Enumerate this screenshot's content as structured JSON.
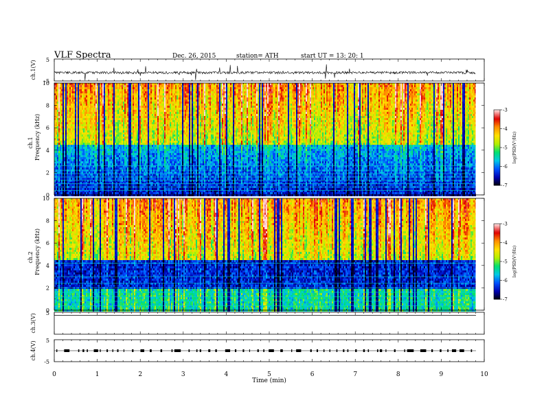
{
  "header": {
    "title": "VLF  Spectra",
    "date": "Dec. 26, 2015",
    "station": "station= ATH",
    "start": "start  UT  =    13: 20: 1"
  },
  "colors": {
    "background": "#ffffff",
    "axes": "#000000",
    "colormap": [
      "#000000",
      "#0000b0",
      "#0050ff",
      "#00c8e6",
      "#00e070",
      "#b4f000",
      "#ffe000",
      "#ff9000",
      "#e00000",
      "#ffd8d8"
    ]
  },
  "chart_data": [
    {
      "type": "line",
      "ylabel": "ch.1(V)",
      "ylim": [
        -5,
        5
      ],
      "yticks": [
        "5",
        "-5"
      ],
      "xlim": [
        0,
        10
      ],
      "series": [
        {
          "baseline": -1.2,
          "noise_amplitude": 0.8,
          "spike_amplitude": 3.5
        }
      ]
    },
    {
      "type": "heatmap",
      "ylabel": "Frequency (kHz)",
      "channel_label": "ch.1",
      "ylim": [
        0,
        10
      ],
      "yticks": [
        "0",
        "2",
        "4",
        "6",
        "8",
        "10"
      ],
      "xlim": [
        0,
        10
      ],
      "data_end_min": 9.8,
      "colorbar": {
        "label": "log(PSD(V²/Hz)",
        "range": [
          -7,
          -3
        ],
        "ticks": [
          "-3",
          "-4",
          "-5",
          "-6",
          "-7"
        ]
      }
    },
    {
      "type": "heatmap",
      "ylabel": "Frequency (kHz)",
      "channel_label": "ch.2",
      "ylim": [
        0,
        10
      ],
      "yticks": [
        "0",
        "2",
        "4",
        "6",
        "8",
        "10"
      ],
      "xlim": [
        0,
        10
      ],
      "data_end_min": 9.8,
      "colorbar": {
        "label": "log(PSD(V²/Hz)",
        "range": [
          -7,
          -3
        ],
        "ticks": [
          "-3",
          "-4",
          "-5",
          "-6",
          "-7"
        ]
      }
    },
    {
      "type": "line",
      "ylabel": "ch.3(V)",
      "ylim": [
        -5,
        5
      ],
      "yticks": [
        "5"
      ],
      "xlim": [
        0,
        10
      ],
      "series": [
        {
          "baseline": 0.0,
          "noise_amplitude": 0.0
        }
      ]
    },
    {
      "type": "line",
      "ylabel": "ch.4(V)",
      "ylim": [
        -5,
        5
      ],
      "yticks": [
        "5",
        "-5"
      ],
      "xlim": [
        0,
        10
      ],
      "series": [
        {
          "baseline": 0.0,
          "pulse_amplitude": 0.8
        }
      ]
    }
  ],
  "xaxis": {
    "label": "Time  (min)",
    "ticks": [
      "0",
      "1",
      "2",
      "3",
      "4",
      "5",
      "6",
      "7",
      "8",
      "9",
      "10"
    ]
  }
}
